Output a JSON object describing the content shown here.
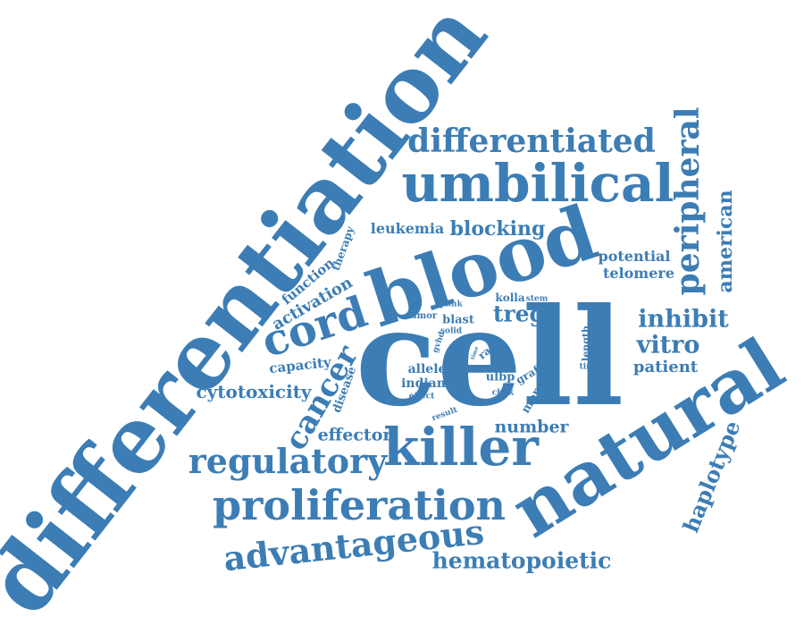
{
  "accent_color": "#3c7db5",
  "background_color": "#ffffff",
  "words": {
    "differentiation": "differentiation",
    "cell": "cell",
    "blood": "blood",
    "natural": "natural",
    "umbilical": "umbilical",
    "killer": "killer",
    "cord": "cord",
    "proliferation": "proliferation",
    "advantageous": "advantageous",
    "regulatory": "regulatory",
    "differentiated": "differentiated",
    "peripheral": "peripheral",
    "hematopoietic": "hematopoietic",
    "cancer": "cancer",
    "haplotype": "haplotype",
    "american": "american",
    "inhibit": "inhibit",
    "vitro": "vitro",
    "cytotoxicity": "cytotoxicity",
    "blocking": "blocking",
    "tregs": "tregs",
    "activation": "activation",
    "effector": "effector",
    "number": "number",
    "leukemia": "leukemia",
    "patient": "patient",
    "potential": "potential",
    "telomere": "telomere",
    "function": "function",
    "capacity": "capacity",
    "therapy": "therapy",
    "allele": "allele",
    "indian": "indian",
    "disease": "disease",
    "ulbp": "ulbp",
    "more": "more",
    "blast": "blast",
    "kolla": "kolla",
    "stem": "stem",
    "pbnk": "pbnk",
    "tumor": "tumor",
    "solid": "solid",
    "gvhd": "gvhd",
    "effect": "effect",
    "result": "result",
    "graft": "graft",
    "cbnk": "cbnk",
    "race": "race",
    "time": "time",
    "time_small": "time",
    "host": "host",
    "able": "able",
    "length": "length"
  }
}
